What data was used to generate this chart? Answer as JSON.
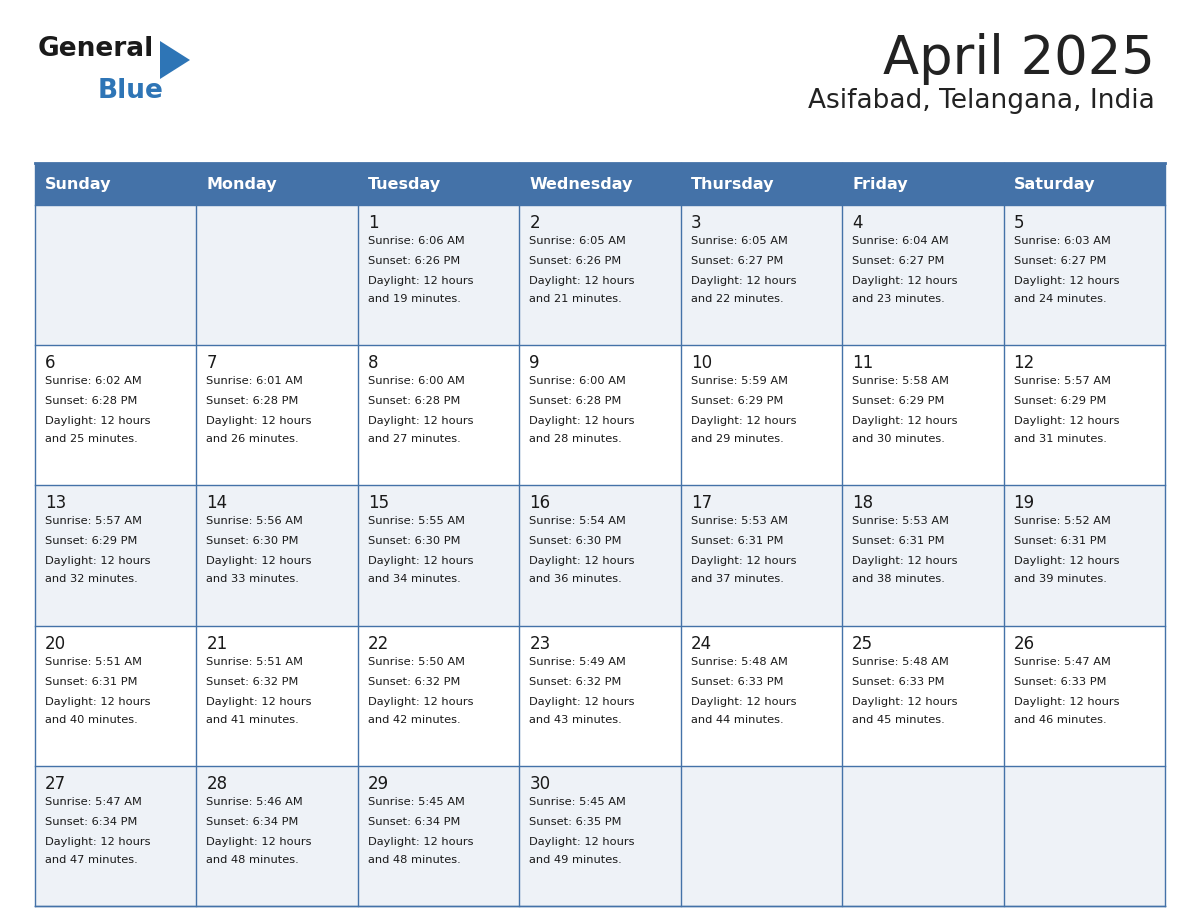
{
  "title": "April 2025",
  "subtitle": "Asifabad, Telangana, India",
  "header_color": "#4472a8",
  "header_text_color": "#ffffff",
  "cell_bg_odd": "#eef2f7",
  "cell_bg_even": "#ffffff",
  "border_color": "#4472a8",
  "day_headers": [
    "Sunday",
    "Monday",
    "Tuesday",
    "Wednesday",
    "Thursday",
    "Friday",
    "Saturday"
  ],
  "weeks": [
    [
      {
        "day": "",
        "sunrise": "",
        "sunset": "",
        "daylight": ""
      },
      {
        "day": "",
        "sunrise": "",
        "sunset": "",
        "daylight": ""
      },
      {
        "day": "1",
        "sunrise": "Sunrise: 6:06 AM",
        "sunset": "Sunset: 6:26 PM",
        "daylight": "Daylight: 12 hours\nand 19 minutes."
      },
      {
        "day": "2",
        "sunrise": "Sunrise: 6:05 AM",
        "sunset": "Sunset: 6:26 PM",
        "daylight": "Daylight: 12 hours\nand 21 minutes."
      },
      {
        "day": "3",
        "sunrise": "Sunrise: 6:05 AM",
        "sunset": "Sunset: 6:27 PM",
        "daylight": "Daylight: 12 hours\nand 22 minutes."
      },
      {
        "day": "4",
        "sunrise": "Sunrise: 6:04 AM",
        "sunset": "Sunset: 6:27 PM",
        "daylight": "Daylight: 12 hours\nand 23 minutes."
      },
      {
        "day": "5",
        "sunrise": "Sunrise: 6:03 AM",
        "sunset": "Sunset: 6:27 PM",
        "daylight": "Daylight: 12 hours\nand 24 minutes."
      }
    ],
    [
      {
        "day": "6",
        "sunrise": "Sunrise: 6:02 AM",
        "sunset": "Sunset: 6:28 PM",
        "daylight": "Daylight: 12 hours\nand 25 minutes."
      },
      {
        "day": "7",
        "sunrise": "Sunrise: 6:01 AM",
        "sunset": "Sunset: 6:28 PM",
        "daylight": "Daylight: 12 hours\nand 26 minutes."
      },
      {
        "day": "8",
        "sunrise": "Sunrise: 6:00 AM",
        "sunset": "Sunset: 6:28 PM",
        "daylight": "Daylight: 12 hours\nand 27 minutes."
      },
      {
        "day": "9",
        "sunrise": "Sunrise: 6:00 AM",
        "sunset": "Sunset: 6:28 PM",
        "daylight": "Daylight: 12 hours\nand 28 minutes."
      },
      {
        "day": "10",
        "sunrise": "Sunrise: 5:59 AM",
        "sunset": "Sunset: 6:29 PM",
        "daylight": "Daylight: 12 hours\nand 29 minutes."
      },
      {
        "day": "11",
        "sunrise": "Sunrise: 5:58 AM",
        "sunset": "Sunset: 6:29 PM",
        "daylight": "Daylight: 12 hours\nand 30 minutes."
      },
      {
        "day": "12",
        "sunrise": "Sunrise: 5:57 AM",
        "sunset": "Sunset: 6:29 PM",
        "daylight": "Daylight: 12 hours\nand 31 minutes."
      }
    ],
    [
      {
        "day": "13",
        "sunrise": "Sunrise: 5:57 AM",
        "sunset": "Sunset: 6:29 PM",
        "daylight": "Daylight: 12 hours\nand 32 minutes."
      },
      {
        "day": "14",
        "sunrise": "Sunrise: 5:56 AM",
        "sunset": "Sunset: 6:30 PM",
        "daylight": "Daylight: 12 hours\nand 33 minutes."
      },
      {
        "day": "15",
        "sunrise": "Sunrise: 5:55 AM",
        "sunset": "Sunset: 6:30 PM",
        "daylight": "Daylight: 12 hours\nand 34 minutes."
      },
      {
        "day": "16",
        "sunrise": "Sunrise: 5:54 AM",
        "sunset": "Sunset: 6:30 PM",
        "daylight": "Daylight: 12 hours\nand 36 minutes."
      },
      {
        "day": "17",
        "sunrise": "Sunrise: 5:53 AM",
        "sunset": "Sunset: 6:31 PM",
        "daylight": "Daylight: 12 hours\nand 37 minutes."
      },
      {
        "day": "18",
        "sunrise": "Sunrise: 5:53 AM",
        "sunset": "Sunset: 6:31 PM",
        "daylight": "Daylight: 12 hours\nand 38 minutes."
      },
      {
        "day": "19",
        "sunrise": "Sunrise: 5:52 AM",
        "sunset": "Sunset: 6:31 PM",
        "daylight": "Daylight: 12 hours\nand 39 minutes."
      }
    ],
    [
      {
        "day": "20",
        "sunrise": "Sunrise: 5:51 AM",
        "sunset": "Sunset: 6:31 PM",
        "daylight": "Daylight: 12 hours\nand 40 minutes."
      },
      {
        "day": "21",
        "sunrise": "Sunrise: 5:51 AM",
        "sunset": "Sunset: 6:32 PM",
        "daylight": "Daylight: 12 hours\nand 41 minutes."
      },
      {
        "day": "22",
        "sunrise": "Sunrise: 5:50 AM",
        "sunset": "Sunset: 6:32 PM",
        "daylight": "Daylight: 12 hours\nand 42 minutes."
      },
      {
        "day": "23",
        "sunrise": "Sunrise: 5:49 AM",
        "sunset": "Sunset: 6:32 PM",
        "daylight": "Daylight: 12 hours\nand 43 minutes."
      },
      {
        "day": "24",
        "sunrise": "Sunrise: 5:48 AM",
        "sunset": "Sunset: 6:33 PM",
        "daylight": "Daylight: 12 hours\nand 44 minutes."
      },
      {
        "day": "25",
        "sunrise": "Sunrise: 5:48 AM",
        "sunset": "Sunset: 6:33 PM",
        "daylight": "Daylight: 12 hours\nand 45 minutes."
      },
      {
        "day": "26",
        "sunrise": "Sunrise: 5:47 AM",
        "sunset": "Sunset: 6:33 PM",
        "daylight": "Daylight: 12 hours\nand 46 minutes."
      }
    ],
    [
      {
        "day": "27",
        "sunrise": "Sunrise: 5:47 AM",
        "sunset": "Sunset: 6:34 PM",
        "daylight": "Daylight: 12 hours\nand 47 minutes."
      },
      {
        "day": "28",
        "sunrise": "Sunrise: 5:46 AM",
        "sunset": "Sunset: 6:34 PM",
        "daylight": "Daylight: 12 hours\nand 48 minutes."
      },
      {
        "day": "29",
        "sunrise": "Sunrise: 5:45 AM",
        "sunset": "Sunset: 6:34 PM",
        "daylight": "Daylight: 12 hours\nand 48 minutes."
      },
      {
        "day": "30",
        "sunrise": "Sunrise: 5:45 AM",
        "sunset": "Sunset: 6:35 PM",
        "daylight": "Daylight: 12 hours\nand 49 minutes."
      },
      {
        "day": "",
        "sunrise": "",
        "sunset": "",
        "daylight": ""
      },
      {
        "day": "",
        "sunrise": "",
        "sunset": "",
        "daylight": ""
      },
      {
        "day": "",
        "sunrise": "",
        "sunset": "",
        "daylight": ""
      }
    ]
  ]
}
